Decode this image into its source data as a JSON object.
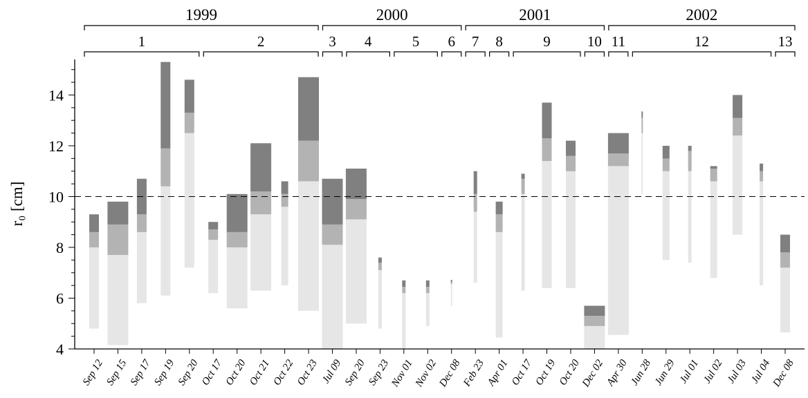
{
  "chart_data": {
    "type": "bar",
    "subtype": "floating-stacked-range",
    "ylabel": "r₀ [cm]",
    "ylim": [
      4,
      15.4
    ],
    "yticks": [
      4,
      6,
      8,
      10,
      12,
      14
    ],
    "reference_line": {
      "y": 10,
      "style": "dashed"
    },
    "grid": false,
    "colors": {
      "base": "#e6e6e6",
      "middle": "#b3b3b3",
      "top": "#808080",
      "axis": "#000000"
    },
    "years": [
      {
        "label": "1999",
        "first": 0,
        "last": 9
      },
      {
        "label": "2000",
        "first": 10,
        "last": 15
      },
      {
        "label": "2001",
        "first": 16,
        "last": 21
      },
      {
        "label": "2002",
        "first": 22,
        "last": 29
      }
    ],
    "groups": [
      {
        "label": "1",
        "first": 0,
        "last": 4
      },
      {
        "label": "2",
        "first": 5,
        "last": 9
      },
      {
        "label": "3",
        "first": 10,
        "last": 10
      },
      {
        "label": "4",
        "first": 11,
        "last": 12
      },
      {
        "label": "5",
        "first": 13,
        "last": 14
      },
      {
        "label": "6",
        "first": 15,
        "last": 15
      },
      {
        "label": "7",
        "first": 16,
        "last": 16
      },
      {
        "label": "8",
        "first": 17,
        "last": 17
      },
      {
        "label": "9",
        "first": 18,
        "last": 20
      },
      {
        "label": "10",
        "first": 21,
        "last": 21
      },
      {
        "label": "11",
        "first": 22,
        "last": 22
      },
      {
        "label": "12",
        "first": 23,
        "last": 28
      },
      {
        "label": "13",
        "first": 29,
        "last": 29
      }
    ],
    "bars": [
      {
        "date": "Sep 12",
        "low": 4.8,
        "mid1": 8.0,
        "mid2": 8.6,
        "high": 9.3,
        "width": "medium"
      },
      {
        "date": "Sep 15",
        "low": 4.15,
        "mid1": 7.7,
        "mid2": 8.9,
        "high": 9.8,
        "width": "wide"
      },
      {
        "date": "Sep 17",
        "low": 5.8,
        "mid1": 8.6,
        "mid2": 9.3,
        "high": 10.7,
        "width": "medium"
      },
      {
        "date": "Sep 19",
        "low": 6.1,
        "mid1": 10.4,
        "mid2": 11.9,
        "high": 15.3,
        "width": "medium"
      },
      {
        "date": "Sep 20",
        "low": 7.2,
        "mid1": 12.5,
        "mid2": 13.3,
        "high": 14.6,
        "width": "medium"
      },
      {
        "date": "Oct 17",
        "low": 6.2,
        "mid1": 8.3,
        "mid2": 8.7,
        "high": 9.0,
        "width": "medium"
      },
      {
        "date": "Oct 20",
        "low": 5.6,
        "mid1": 8.0,
        "mid2": 8.6,
        "high": 10.1,
        "width": "wide"
      },
      {
        "date": "Oct 21",
        "low": 6.3,
        "mid1": 9.3,
        "mid2": 10.2,
        "high": 12.1,
        "width": "wide"
      },
      {
        "date": "Oct 22",
        "low": 6.5,
        "mid1": 9.6,
        "mid2": 10.1,
        "high": 10.6,
        "width": "narrow"
      },
      {
        "date": "Oct 23",
        "low": 5.5,
        "mid1": 10.6,
        "mid2": 12.2,
        "high": 14.7,
        "width": "wide"
      },
      {
        "date": "Jul 09",
        "low": 4.0,
        "mid1": 8.1,
        "mid2": 8.9,
        "high": 10.7,
        "width": "wide"
      },
      {
        "date": "Sep 20",
        "low": 5.0,
        "mid1": 9.1,
        "mid2": 9.9,
        "high": 11.1,
        "width": "wide"
      },
      {
        "date": "Sep 23",
        "low": 4.8,
        "mid1": 7.1,
        "mid2": 7.4,
        "high": 7.6,
        "width": "thin"
      },
      {
        "date": "Nov 01",
        "low": 4.0,
        "mid1": 6.2,
        "mid2": 6.45,
        "high": 6.7,
        "width": "thin"
      },
      {
        "date": "Nov 02",
        "low": 4.9,
        "mid1": 6.2,
        "mid2": 6.45,
        "high": 6.7,
        "width": "thin"
      },
      {
        "date": "Dec 08",
        "low": 5.7,
        "mid1": 6.55,
        "mid2": 6.62,
        "high": 6.72,
        "width": "hair"
      },
      {
        "date": "Feb 23",
        "low": 6.6,
        "mid1": 9.4,
        "mid2": 10.1,
        "high": 11.0,
        "width": "thin"
      },
      {
        "date": "Apr 01",
        "low": 4.45,
        "mid1": 8.6,
        "mid2": 9.3,
        "high": 9.8,
        "width": "narrow"
      },
      {
        "date": "Oct 17",
        "low": 6.3,
        "mid1": 10.1,
        "mid2": 10.7,
        "high": 10.9,
        "width": "thin"
      },
      {
        "date": "Oct 19",
        "low": 6.4,
        "mid1": 11.4,
        "mid2": 12.3,
        "high": 13.7,
        "width": "medium"
      },
      {
        "date": "Oct 20",
        "low": 6.4,
        "mid1": 11.0,
        "mid2": 11.6,
        "high": 12.2,
        "width": "medium"
      },
      {
        "date": "Dec 02",
        "low": 4.0,
        "mid1": 4.9,
        "mid2": 5.3,
        "high": 5.7,
        "width": "wide"
      },
      {
        "date": "Apr 30",
        "low": 4.55,
        "mid1": 11.2,
        "mid2": 11.7,
        "high": 12.5,
        "width": "wide"
      },
      {
        "date": "Jun 28",
        "low": 10.1,
        "mid1": 12.5,
        "mid2": 13.1,
        "high": 13.35,
        "width": "hair"
      },
      {
        "date": "Jun 29",
        "low": 7.5,
        "mid1": 11.0,
        "mid2": 11.5,
        "high": 12.0,
        "width": "narrow"
      },
      {
        "date": "Jul 01",
        "low": 7.4,
        "mid1": 11.0,
        "mid2": 11.8,
        "high": 12.0,
        "width": "thin"
      },
      {
        "date": "Jul 02",
        "low": 6.8,
        "mid1": 10.6,
        "mid2": 11.1,
        "high": 11.2,
        "width": "narrow"
      },
      {
        "date": "Jul 03",
        "low": 8.5,
        "mid1": 12.4,
        "mid2": 13.1,
        "high": 14.0,
        "width": "medium"
      },
      {
        "date": "Jul 04",
        "low": 6.5,
        "mid1": 10.6,
        "mid2": 11.0,
        "high": 11.3,
        "width": "thin"
      },
      {
        "date": "Dec 08",
        "low": 4.65,
        "mid1": 7.2,
        "mid2": 7.8,
        "high": 8.5,
        "width": "medium"
      }
    ]
  }
}
